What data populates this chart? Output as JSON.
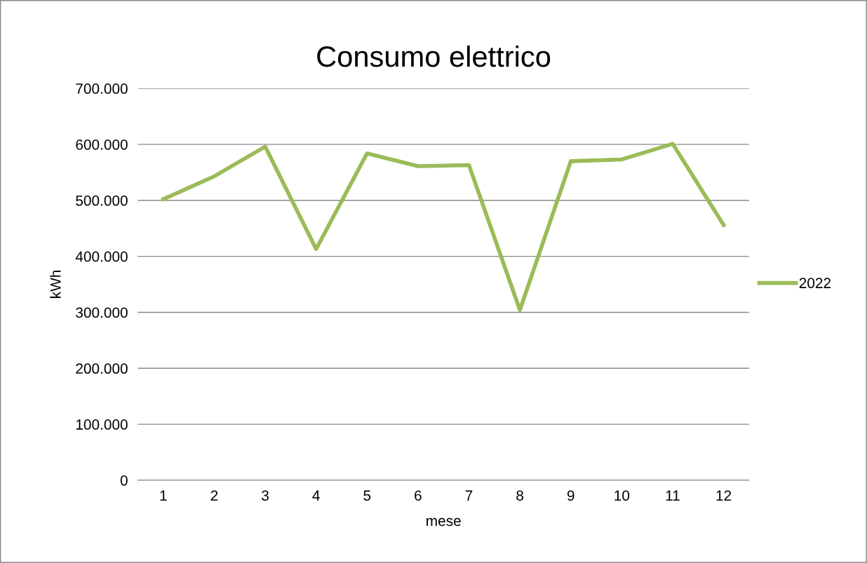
{
  "chart_data": {
    "type": "line",
    "title": "Consumo elettrico",
    "xlabel": "mese",
    "ylabel": "kWh",
    "categories": [
      "1",
      "2",
      "3",
      "4",
      "5",
      "6",
      "7",
      "8",
      "9",
      "10",
      "11",
      "12"
    ],
    "series": [
      {
        "name": "2022",
        "color": "#9bbb59",
        "values": [
          502000,
          543000,
          596000,
          413000,
          584000,
          561000,
          563000,
          304000,
          570000,
          573000,
          601000,
          456000
        ]
      }
    ],
    "ylim": [
      0,
      700000
    ],
    "yticks": [
      0,
      {
        "value": 100000,
        "label": "100.000"
      },
      {
        "value": 200000,
        "label": "200.000"
      },
      {
        "value": 300000,
        "label": "300.000"
      },
      {
        "value": 400000,
        "label": "400.000"
      },
      {
        "value": 500000,
        "label": "500.000"
      },
      {
        "value": 600000,
        "label": "600.000"
      },
      {
        "value": 700000,
        "label": "700.000"
      }
    ],
    "grid": "y",
    "legend": "right",
    "marker": "none",
    "line_style": "solid"
  }
}
